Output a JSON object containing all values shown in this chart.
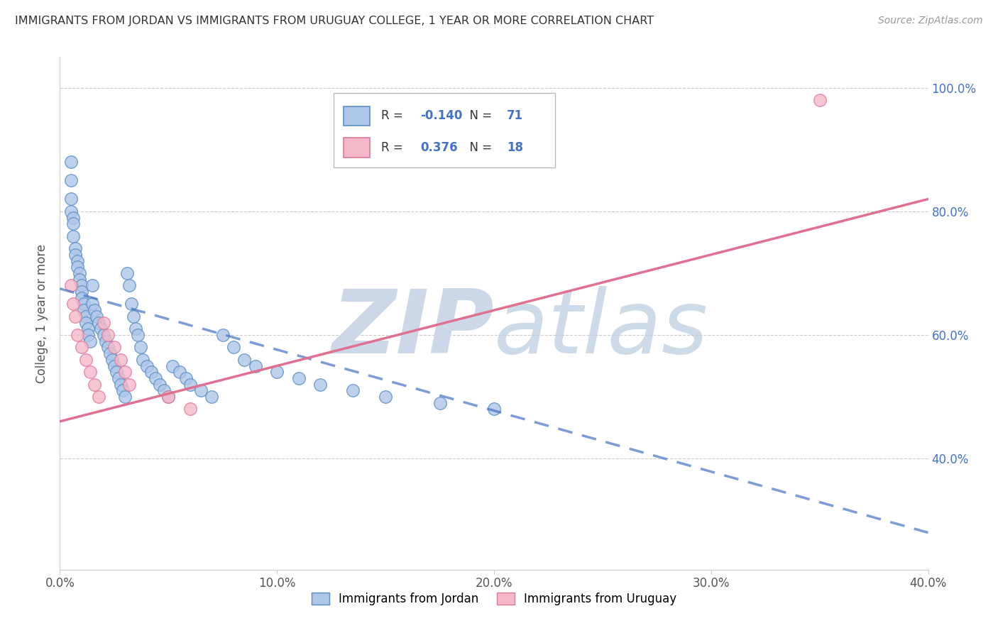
{
  "title": "IMMIGRANTS FROM JORDAN VS IMMIGRANTS FROM URUGUAY COLLEGE, 1 YEAR OR MORE CORRELATION CHART",
  "source": "Source: ZipAtlas.com",
  "ylabel": "College, 1 year or more",
  "xlim": [
    0.0,
    0.4
  ],
  "ylim": [
    0.22,
    1.05
  ],
  "xtick_vals": [
    0.0,
    0.1,
    0.2,
    0.3,
    0.4
  ],
  "xtick_labels": [
    "0.0%",
    "10.0%",
    "20.0%",
    "30.0%",
    "40.0%"
  ],
  "ytick_positions": [
    1.0,
    0.8,
    0.6,
    0.4
  ],
  "ytick_labels_right": [
    "100.0%",
    "80.0%",
    "60.0%",
    "40.0%"
  ],
  "jordan_R": -0.14,
  "jordan_N": 71,
  "uruguay_R": 0.376,
  "uruguay_N": 18,
  "legend_label_jordan": "Immigrants from Jordan",
  "legend_label_uruguay": "Immigrants from Uruguay",
  "jordan_color": "#aec6e8",
  "jordan_edge_color": "#5b8fc4",
  "uruguay_color": "#f4b8c8",
  "uruguay_edge_color": "#e0789a",
  "jordan_line_color": "#4472c4",
  "uruguay_line_color": "#e07090",
  "jordan_line_dash": [
    6,
    4
  ],
  "jordan_line_alpha": 0.7,
  "background_color": "#ffffff",
  "grid_color": "#cccccc",
  "watermark_color": "#ccd8e8",
  "jordan_scatter_x": [
    0.005,
    0.005,
    0.005,
    0.005,
    0.006,
    0.006,
    0.006,
    0.007,
    0.007,
    0.008,
    0.008,
    0.009,
    0.009,
    0.01,
    0.01,
    0.01,
    0.011,
    0.011,
    0.012,
    0.012,
    0.013,
    0.013,
    0.014,
    0.015,
    0.015,
    0.016,
    0.017,
    0.018,
    0.019,
    0.02,
    0.021,
    0.022,
    0.023,
    0.024,
    0.025,
    0.026,
    0.027,
    0.028,
    0.029,
    0.03,
    0.031,
    0.032,
    0.033,
    0.034,
    0.035,
    0.036,
    0.037,
    0.038,
    0.04,
    0.042,
    0.044,
    0.046,
    0.048,
    0.05,
    0.052,
    0.055,
    0.058,
    0.06,
    0.065,
    0.07,
    0.075,
    0.08,
    0.085,
    0.09,
    0.1,
    0.11,
    0.12,
    0.135,
    0.15,
    0.175,
    0.2
  ],
  "jordan_scatter_y": [
    0.88,
    0.85,
    0.82,
    0.8,
    0.79,
    0.78,
    0.76,
    0.74,
    0.73,
    0.72,
    0.71,
    0.7,
    0.69,
    0.68,
    0.67,
    0.66,
    0.65,
    0.64,
    0.63,
    0.62,
    0.61,
    0.6,
    0.59,
    0.68,
    0.65,
    0.64,
    0.63,
    0.62,
    0.61,
    0.6,
    0.59,
    0.58,
    0.57,
    0.56,
    0.55,
    0.54,
    0.53,
    0.52,
    0.51,
    0.5,
    0.7,
    0.68,
    0.65,
    0.63,
    0.61,
    0.6,
    0.58,
    0.56,
    0.55,
    0.54,
    0.53,
    0.52,
    0.51,
    0.5,
    0.55,
    0.54,
    0.53,
    0.52,
    0.51,
    0.5,
    0.6,
    0.58,
    0.56,
    0.55,
    0.54,
    0.53,
    0.52,
    0.51,
    0.5,
    0.49,
    0.48
  ],
  "uruguay_scatter_x": [
    0.005,
    0.006,
    0.007,
    0.008,
    0.01,
    0.012,
    0.014,
    0.016,
    0.018,
    0.02,
    0.022,
    0.025,
    0.028,
    0.03,
    0.032,
    0.05,
    0.06,
    0.35
  ],
  "uruguay_scatter_y": [
    0.68,
    0.65,
    0.63,
    0.6,
    0.58,
    0.56,
    0.54,
    0.52,
    0.5,
    0.62,
    0.6,
    0.58,
    0.56,
    0.54,
    0.52,
    0.5,
    0.48,
    0.98
  ],
  "jordan_line_x0": 0.0,
  "jordan_line_y0": 0.675,
  "jordan_line_x1": 0.4,
  "jordan_line_y1": 0.28,
  "uruguay_line_x0": 0.0,
  "uruguay_line_y0": 0.46,
  "uruguay_line_x1": 0.4,
  "uruguay_line_y1": 0.82
}
